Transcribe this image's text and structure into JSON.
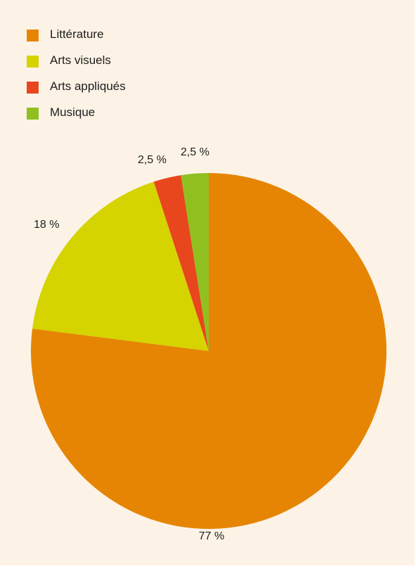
{
  "chart_data": {
    "type": "pie",
    "title": "",
    "legend_position": "top-left",
    "start_angle_deg": 0,
    "direction": "clockwise",
    "slices": [
      {
        "label": "Littérature",
        "value": 77,
        "value_label": "77 %",
        "color": "#e68503"
      },
      {
        "label": "Arts visuels",
        "value": 18,
        "value_label": "18 %",
        "color": "#d5d300"
      },
      {
        "label": "Arts appliqués",
        "value": 2.5,
        "value_label": "2,5 %",
        "color": "#e8461c"
      },
      {
        "label": "Musique",
        "value": 2.5,
        "value_label": "2,5 %",
        "color": "#90c020"
      }
    ]
  }
}
